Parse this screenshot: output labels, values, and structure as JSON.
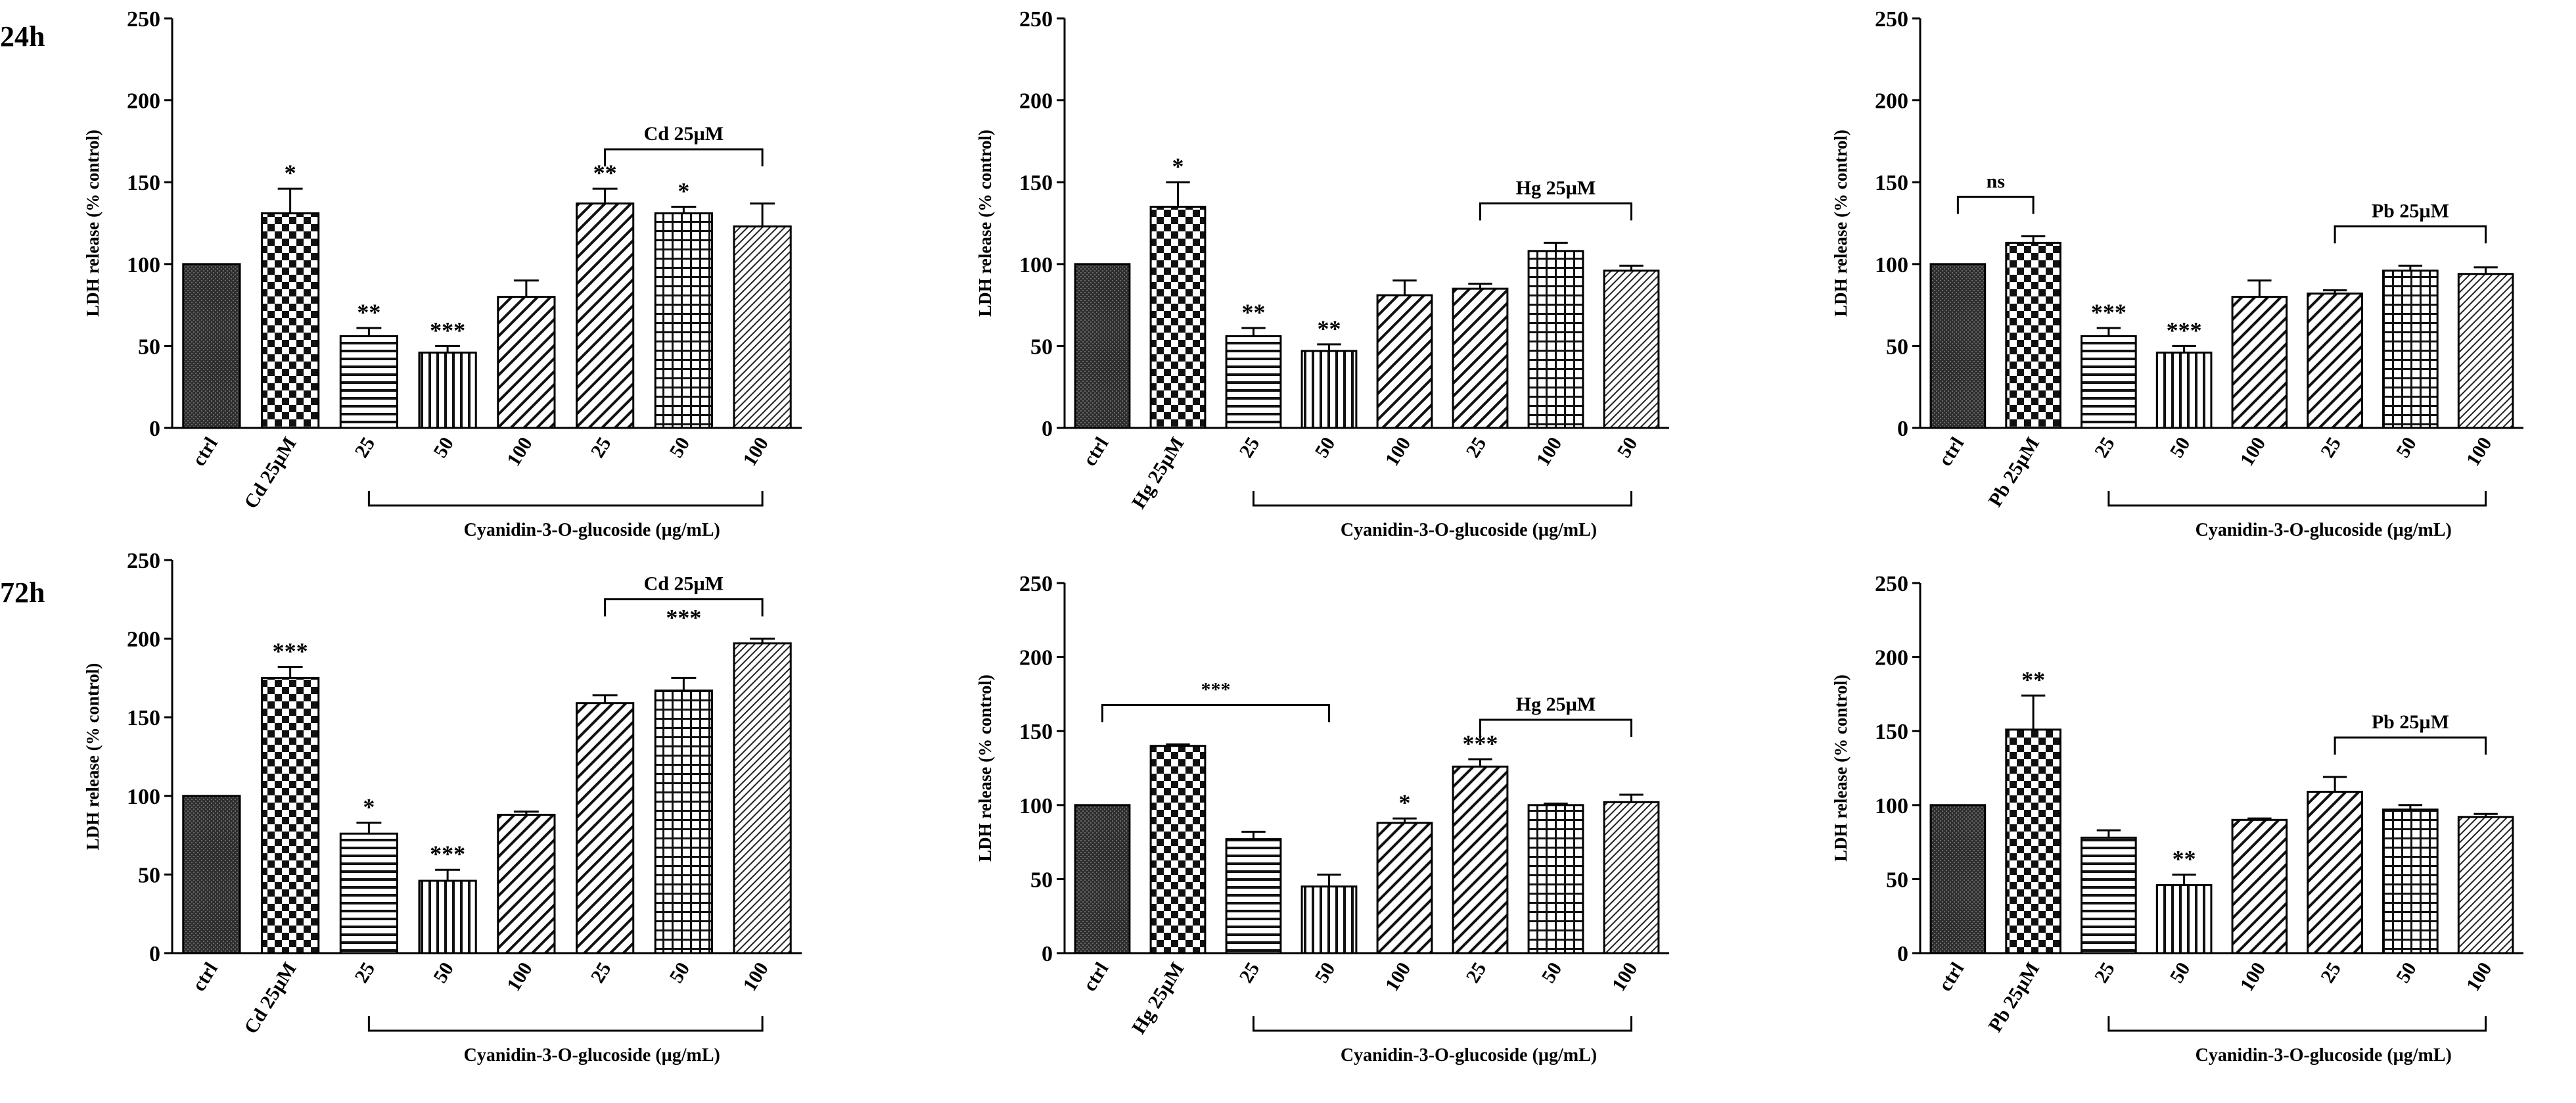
{
  "row_labels": [
    "24h",
    "72h"
  ],
  "chart_data": [
    {
      "type": "bar",
      "ylabel": "LDH release (% control)",
      "ylim": [
        0,
        250
      ],
      "yticks": [
        0,
        50,
        100,
        150,
        200,
        250
      ],
      "categories": [
        "ctrl",
        "Cd 25µM",
        "25",
        "50",
        "100",
        "25",
        "50",
        "100"
      ],
      "patterns": [
        "dark",
        "check",
        "hline",
        "vline",
        "diag",
        "diag",
        "grid",
        "diag-fine"
      ],
      "values": [
        100,
        131,
        56,
        46,
        80,
        137,
        131,
        123
      ],
      "errors": [
        0,
        15,
        5,
        4,
        10,
        9,
        4,
        14
      ],
      "significance": [
        "",
        "*",
        "**",
        "***",
        "",
        "**",
        "*",
        ""
      ],
      "brackets": [
        {
          "label": "Cd 25µM",
          "from": 5,
          "to": 7
        }
      ],
      "group_label": "Cyanidin-3-O-glucoside (µg/mL)",
      "group_range": [
        2,
        7
      ]
    },
    {
      "type": "bar",
      "ylabel": "LDH release (% control)",
      "ylim": [
        0,
        250
      ],
      "yticks": [
        0,
        50,
        100,
        150,
        200,
        250
      ],
      "categories": [
        "ctrl",
        "Hg 25µM",
        "25",
        "50",
        "100",
        "25",
        "100",
        "50"
      ],
      "patterns": [
        "dark",
        "check",
        "hline",
        "vline",
        "diag",
        "diag",
        "grid",
        "diag-fine"
      ],
      "values": [
        100,
        135,
        56,
        47,
        81,
        85,
        108,
        96
      ],
      "errors": [
        0,
        15,
        5,
        4,
        9,
        3,
        5,
        3
      ],
      "significance": [
        "",
        "*",
        "**",
        "**",
        "",
        "",
        "",
        ""
      ],
      "brackets": [
        {
          "label": "Hg 25µM",
          "from": 5,
          "to": 7
        }
      ],
      "group_label": "Cyanidin-3-O-glucoside (µg/mL)",
      "group_range": [
        2,
        7
      ]
    },
    {
      "type": "bar",
      "ylabel": "LDH release (% control)",
      "ylim": [
        0,
        250
      ],
      "yticks": [
        0,
        50,
        100,
        150,
        200,
        250
      ],
      "categories": [
        "ctrl",
        "Pb 25µM",
        "25",
        "50",
        "100",
        "25",
        "50",
        "100"
      ],
      "patterns": [
        "dark",
        "check",
        "hline",
        "vline",
        "diag",
        "diag",
        "grid",
        "diag-fine"
      ],
      "values": [
        100,
        113,
        56,
        46,
        80,
        82,
        96,
        94
      ],
      "errors": [
        0,
        4,
        5,
        4,
        10,
        2,
        3,
        4
      ],
      "significance": [
        "",
        "",
        "***",
        "***",
        "",
        "",
        "",
        ""
      ],
      "brackets": [
        {
          "label": "ns",
          "from": 0,
          "to": 1
        },
        {
          "label": "Pb 25µM",
          "from": 5,
          "to": 7
        }
      ],
      "group_label": "Cyanidin-3-O-glucoside (µg/mL)",
      "group_range": [
        2,
        7
      ]
    },
    {
      "type": "bar",
      "ylabel": "LDH release (% control)",
      "ylim": [
        0,
        250
      ],
      "yticks": [
        0,
        50,
        100,
        150,
        200,
        250
      ],
      "categories": [
        "ctrl",
        "Cd 25µM",
        "25",
        "50",
        "100",
        "25",
        "50",
        "100"
      ],
      "patterns": [
        "dark",
        "check",
        "hline",
        "vline",
        "diag",
        "diag",
        "grid",
        "diag-fine"
      ],
      "values": [
        100,
        175,
        76,
        46,
        88,
        159,
        167,
        197
      ],
      "errors": [
        0,
        7,
        7,
        7,
        2,
        5,
        8,
        3
      ],
      "significance": [
        "",
        "***",
        "*",
        "***",
        "",
        "",
        "",
        ""
      ],
      "brackets": [
        {
          "label": "Cd 25µM",
          "from": 5,
          "to": 7,
          "inner": "***"
        }
      ],
      "group_label": "Cyanidin-3-O-glucoside (µg/mL)",
      "group_range": [
        2,
        7
      ]
    },
    {
      "type": "bar",
      "ylabel": "LDH release (% control)",
      "ylim": [
        0,
        250
      ],
      "yticks": [
        0,
        50,
        100,
        150,
        200,
        250
      ],
      "categories": [
        "ctrl",
        "Hg 25µM",
        "25",
        "50",
        "100",
        "25",
        "50",
        "100"
      ],
      "patterns": [
        "dark",
        "check",
        "hline",
        "vline",
        "diag",
        "diag",
        "grid",
        "diag-fine"
      ],
      "values": [
        100,
        140,
        77,
        45,
        88,
        126,
        100,
        102
      ],
      "errors": [
        0,
        1,
        5,
        8,
        3,
        5,
        1,
        5
      ],
      "significance": [
        "",
        "",
        "",
        "",
        "*",
        "***",
        "",
        ""
      ],
      "brackets": [
        {
          "label": "***",
          "from": 0,
          "to": 3
        },
        {
          "label": "Hg 25µM",
          "from": 5,
          "to": 7
        }
      ],
      "group_label": "Cyanidin-3-O-glucoside (µg/mL)",
      "group_range": [
        2,
        7
      ]
    },
    {
      "type": "bar",
      "ylabel": "LDH release (% control)",
      "ylim": [
        0,
        250
      ],
      "yticks": [
        0,
        50,
        100,
        150,
        200,
        250
      ],
      "categories": [
        "ctrl",
        "Pb 25µM",
        "25",
        "50",
        "100",
        "25",
        "50",
        "100"
      ],
      "patterns": [
        "dark",
        "check",
        "hline",
        "vline",
        "diag",
        "diag",
        "grid",
        "diag-fine"
      ],
      "values": [
        100,
        151,
        78,
        46,
        90,
        109,
        97,
        92
      ],
      "errors": [
        0,
        23,
        5,
        7,
        1,
        10,
        3,
        2
      ],
      "significance": [
        "",
        "**",
        "",
        "**",
        "",
        "",
        "",
        ""
      ],
      "brackets": [
        {
          "label": "Pb 25µM",
          "from": 5,
          "to": 7
        }
      ],
      "group_label": "Cyanidin-3-O-glucoside (µg/mL)",
      "group_range": [
        2,
        7
      ]
    }
  ]
}
